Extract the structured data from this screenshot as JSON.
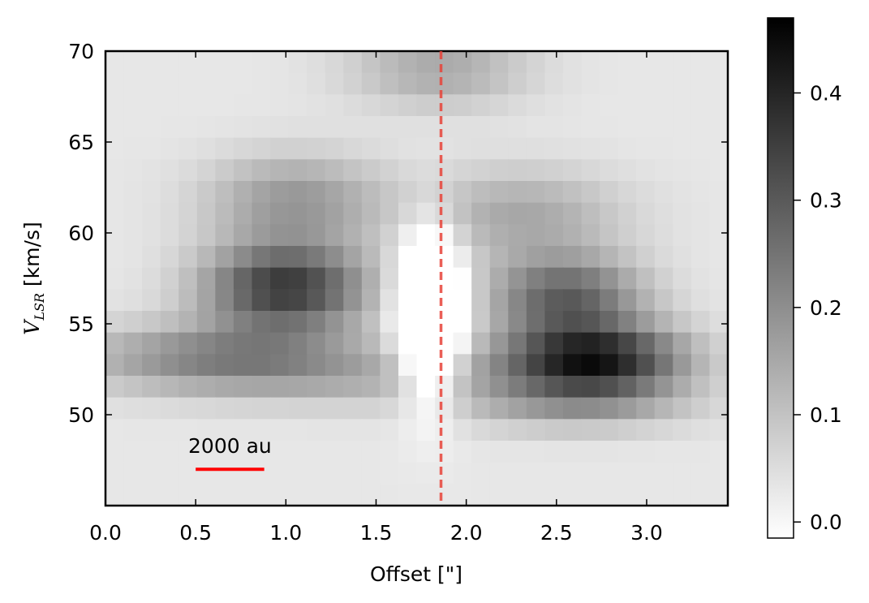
{
  "chart_data": {
    "type": "heatmap",
    "title": "",
    "xlabel": "Offset [\"]",
    "ylabel": "V_LSR [km/s]",
    "ylabel_main": "V",
    "ylabel_sub": "LSR",
    "ylabel_units": " [km/s]",
    "xlim": [
      0,
      3.45
    ],
    "ylim": [
      45,
      70
    ],
    "x_ticks": [
      "0.0",
      "0.5",
      "1.0",
      "1.5",
      "2.0",
      "2.5",
      "3.0"
    ],
    "y_ticks": [
      "50",
      "55",
      "60",
      "65",
      "70"
    ],
    "colormap": "gray_r",
    "colorbar": {
      "min": -0.015,
      "max": 0.47,
      "ticks": [
        "0.0",
        "0.1",
        "0.2",
        "0.3",
        "0.4"
      ]
    },
    "grid": false,
    "reference_line": {
      "x": 1.86,
      "style": "dashed",
      "color": "#e8443a"
    },
    "scale_bar": {
      "label": "2000 au",
      "x_start": 0.5,
      "x_end": 0.88,
      "y": 47,
      "color": "#ff0000"
    },
    "features": [
      {
        "x": 1.0,
        "y": 57.0,
        "value": 0.38
      },
      {
        "x": 2.7,
        "y": 53.0,
        "value": 0.45
      },
      {
        "x": 2.6,
        "y": 56.5,
        "value": 0.36
      },
      {
        "x": 1.8,
        "y": 55.5,
        "value": -0.01
      }
    ]
  }
}
